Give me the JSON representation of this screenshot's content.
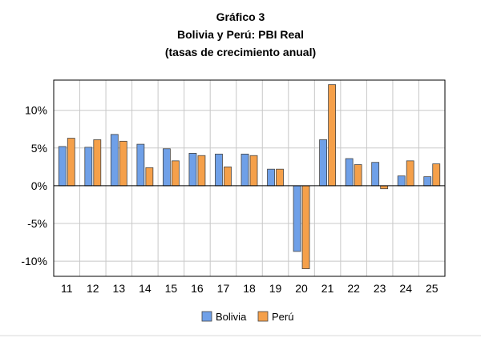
{
  "chart_data": {
    "type": "bar",
    "title_lines": [
      "Gráfico 3",
      "Bolivia y Perú: PBI Real",
      "(tasas de crecimiento anual)"
    ],
    "categories": [
      "11",
      "12",
      "13",
      "14",
      "15",
      "16",
      "17",
      "18",
      "19",
      "20",
      "21",
      "22",
      "23",
      "24",
      "25"
    ],
    "series": [
      {
        "name": "Bolivia",
        "color": "#6fa0e8",
        "values": [
          5.2,
          5.1,
          6.8,
          5.5,
          4.9,
          4.3,
          4.2,
          4.2,
          2.2,
          -8.7,
          6.1,
          3.6,
          3.1,
          1.3,
          1.2
        ]
      },
      {
        "name": "Perú",
        "color": "#f5a04a",
        "values": [
          6.3,
          6.1,
          5.9,
          2.4,
          3.3,
          4.0,
          2.5,
          4.0,
          2.2,
          -11.0,
          13.4,
          2.8,
          -0.4,
          3.3,
          2.9
        ]
      }
    ],
    "ylim": [
      -12,
      14
    ],
    "yticks": [
      10,
      5,
      0,
      -5,
      -10
    ],
    "ytick_labels": [
      "10%",
      "5%",
      "0%",
      "-5%",
      "-10%"
    ],
    "grid": true,
    "legend_position": "bottom-center"
  }
}
